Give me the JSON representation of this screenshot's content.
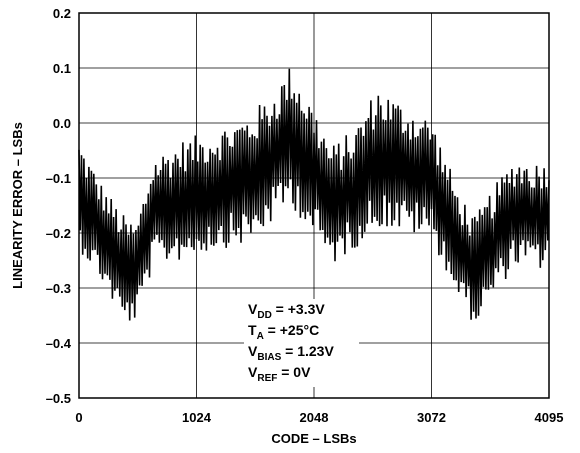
{
  "chart_data": {
    "type": "line",
    "xlabel": "CODE – LSBs",
    "ylabel": "LINEARITY ERROR – LSBs",
    "xlim": [
      0,
      4095
    ],
    "ylim": [
      -0.5,
      0.2
    ],
    "x_ticks": [
      "0",
      "1024",
      "2048",
      "3072",
      "4095"
    ],
    "y_ticks": [
      "0.2",
      "0.1",
      "0.0",
      "–0.1",
      "–0.2",
      "–0.3",
      "–0.4",
      "–0.5"
    ],
    "grid": true,
    "annotation": [
      {
        "main": "V",
        "sub": "DD",
        "rest": " = +3.3V"
      },
      {
        "main": "T",
        "sub": "A",
        "rest": " = +25°C"
      },
      {
        "main": "V",
        "sub": "BIAS",
        "rest": " = 1.23V"
      },
      {
        "main": "V",
        "sub": "REF",
        "rest": " = 0V"
      }
    ],
    "envelope": {
      "x": [
        0,
        200,
        400,
        500,
        650,
        900,
        1200,
        1500,
        1700,
        1850,
        2048,
        2200,
        2400,
        2600,
        2800,
        3072,
        3300,
        3450,
        3600,
        3800,
        4000,
        4095
      ],
      "center": [
        -0.13,
        -0.2,
        -0.27,
        -0.27,
        -0.16,
        -0.14,
        -0.12,
        -0.1,
        -0.06,
        -0.02,
        -0.09,
        -0.15,
        -0.12,
        -0.06,
        -0.08,
        -0.1,
        -0.22,
        -0.27,
        -0.22,
        -0.16,
        -0.17,
        -0.16
      ],
      "amplitude": [
        0.1,
        0.09,
        0.1,
        0.09,
        0.1,
        0.11,
        0.11,
        0.12,
        0.12,
        0.13,
        0.12,
        0.11,
        0.11,
        0.13,
        0.12,
        0.11,
        0.1,
        0.1,
        0.1,
        0.1,
        0.1,
        0.1
      ]
    },
    "trace_extremes": {
      "max": 0.13,
      "max_at": 1850,
      "min": -0.39,
      "min_at": 450
    }
  }
}
